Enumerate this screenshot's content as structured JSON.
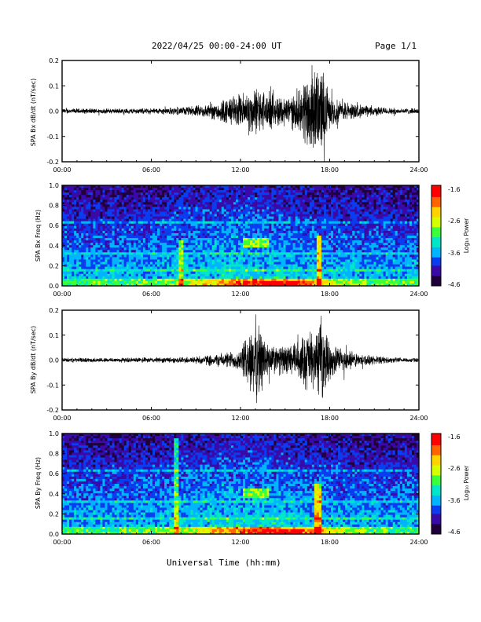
{
  "header": {
    "title": "2022/04/25  00:00-24:00 UT",
    "page": "Page 1/1"
  },
  "footer": {
    "xlabel": "Universal Time (hh:mm)"
  },
  "colors": {
    "trace": "#000000",
    "frame": "#000000",
    "colormap": [
      "#20003a",
      "#3a0aa8",
      "#0a3cf0",
      "#00b4ff",
      "#00e6c8",
      "#3cff3c",
      "#d4ff00",
      "#ffd200",
      "#ff6400",
      "#ff0000"
    ]
  },
  "panels": [
    {
      "ylabel": "SPA Bx dB/dt (nT/sec)"
    },
    {
      "ylabel": "SPA Bx Freq (Hz)",
      "colorbar_label": "Log₁₀ Power",
      "colorbar_ticks": [
        "-1.6",
        "-2.6",
        "-3.6",
        "-4.6"
      ]
    },
    {
      "ylabel": "SPA By dB/dt (nT/sec)"
    },
    {
      "ylabel": "SPA By Freq (Hz)",
      "colorbar_label": "Log₁₀ Power",
      "colorbar_ticks": [
        "-1.6",
        "-2.6",
        "-3.6",
        "-4.6"
      ]
    }
  ],
  "chart_data": [
    {
      "type": "line",
      "title": "",
      "ylabel": "SPA Bx dB/dt (nT/sec)",
      "xlabel": "",
      "xlim": [
        0,
        24
      ],
      "ylim": [
        -0.2,
        0.2
      ],
      "x_ticks": [
        "00:00",
        "06:00",
        "12:00",
        "18:00",
        "24:00"
      ],
      "y_ticks": [
        "0.2",
        "0.1",
        "0.0",
        "-0.1",
        "-0.2"
      ],
      "envelope_x": [
        0,
        2,
        4,
        6,
        8,
        9,
        10,
        11,
        12,
        13,
        14,
        15,
        16,
        16.5,
        17,
        17.5,
        18,
        19,
        20,
        21,
        22,
        24
      ],
      "envelope_amp": [
        0.012,
        0.012,
        0.012,
        0.013,
        0.018,
        0.025,
        0.035,
        0.06,
        0.08,
        0.11,
        0.08,
        0.07,
        0.09,
        0.2,
        0.2,
        0.2,
        0.07,
        0.045,
        0.03,
        0.022,
        0.015,
        0.012
      ]
    },
    {
      "type": "heatmap",
      "title": "",
      "ylabel": "SPA Bx Freq (Hz)",
      "xlim": [
        0,
        24
      ],
      "ylim": [
        0.0,
        1.0
      ],
      "x_ticks": [
        "00:00",
        "06:00",
        "12:00",
        "18:00",
        "24:00"
      ],
      "y_ticks": [
        "1.0",
        "0.8",
        "0.6",
        "0.4",
        "0.2",
        "0.0"
      ],
      "colorbar": {
        "label": "Log₁₀ Power",
        "range": [
          -4.6,
          -1.6
        ],
        "ticks": [
          -1.6,
          -2.6,
          -3.6,
          -4.6
        ]
      },
      "features": [
        {
          "t": 8.0,
          "fmax": 0.45,
          "level": 0.55
        },
        {
          "t": 13.0,
          "f": 0.42,
          "level": 0.6
        },
        {
          "t": 17.3,
          "fmax": 0.5,
          "level": 0.8
        }
      ]
    },
    {
      "type": "line",
      "title": "",
      "ylabel": "SPA By dB/dt (nT/sec)",
      "xlabel": "",
      "xlim": [
        0,
        24
      ],
      "ylim": [
        -0.2,
        0.2
      ],
      "x_ticks": [
        "00:00",
        "06:00",
        "12:00",
        "18:00",
        "24:00"
      ],
      "y_ticks": [
        "0.2",
        "0.1",
        "0.0",
        "-0.1",
        "-0.2"
      ],
      "envelope_x": [
        0,
        2,
        4,
        6,
        8,
        9,
        10,
        11,
        12,
        13,
        14,
        15,
        16,
        16.5,
        17,
        17.5,
        18,
        19,
        20,
        21,
        22,
        24
      ],
      "envelope_amp": [
        0.01,
        0.01,
        0.011,
        0.012,
        0.014,
        0.018,
        0.025,
        0.035,
        0.05,
        0.2,
        0.07,
        0.065,
        0.09,
        0.15,
        0.12,
        0.2,
        0.08,
        0.05,
        0.03,
        0.02,
        0.013,
        0.01
      ]
    },
    {
      "type": "heatmap",
      "title": "",
      "ylabel": "SPA By Freq (Hz)",
      "xlim": [
        0,
        24
      ],
      "ylim": [
        0.0,
        1.0
      ],
      "x_ticks": [
        "00:00",
        "06:00",
        "12:00",
        "18:00",
        "24:00"
      ],
      "y_ticks": [
        "1.0",
        "0.8",
        "0.6",
        "0.4",
        "0.2",
        "0.0"
      ],
      "colorbar": {
        "label": "Log₁₀ Power",
        "range": [
          -4.6,
          -1.6
        ],
        "ticks": [
          -1.6,
          -2.6,
          -3.6,
          -4.6
        ]
      },
      "features": [
        {
          "t": 7.7,
          "fmax": 0.95,
          "level": 0.55
        },
        {
          "t": 13.0,
          "f": 0.4,
          "level": 0.6
        },
        {
          "t": 17.2,
          "fmax": 0.5,
          "level": 0.8
        }
      ]
    }
  ]
}
